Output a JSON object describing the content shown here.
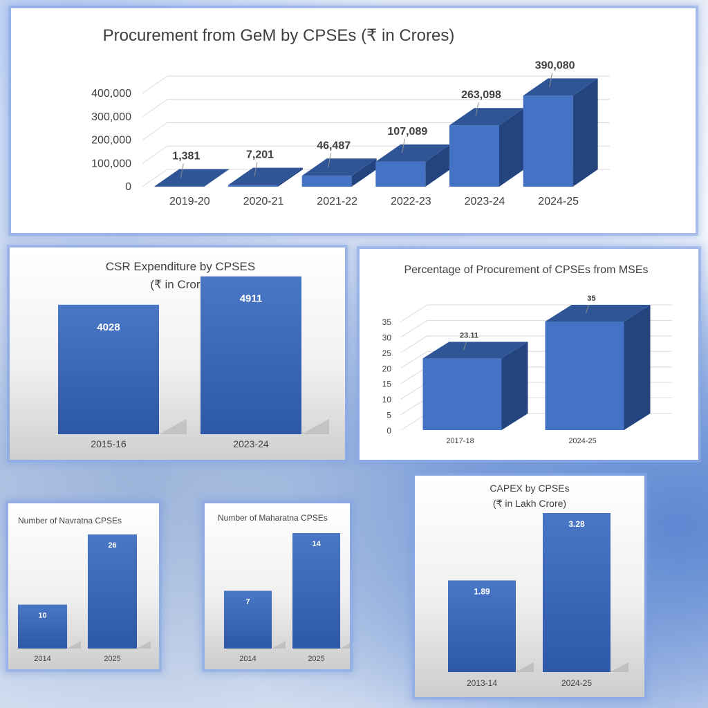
{
  "colors": {
    "bar_front": "#4472c4",
    "bar_top": "#2f5597",
    "bar_side": "#24447f",
    "label_text": "#404040",
    "grid": "#d9d9d9"
  },
  "chart_data": [
    {
      "id": "gem",
      "type": "bar",
      "style": "3d",
      "title": "Procurement from GeM by CPSEs (₹ in Crores)",
      "categories": [
        "2019-20",
        "2020-21",
        "2021-22",
        "2022-23",
        "2023-24",
        "2024-25"
      ],
      "values": [
        1381,
        7201,
        46487,
        107089,
        263098,
        390080
      ],
      "data_labels": [
        "1,381",
        "7,201",
        "46,487",
        "107,089",
        "263,098",
        "390,080"
      ],
      "yticks": [
        0,
        100000,
        200000,
        300000,
        400000
      ],
      "ytick_labels": [
        "0",
        "100,000",
        "200,000",
        "300,000",
        "400,000"
      ],
      "ylim": [
        0,
        400000
      ],
      "grid": true
    },
    {
      "id": "csr",
      "type": "bar",
      "title_lines": [
        "CSR Expenditure  by CPSES",
        "(₹ in Crore)"
      ],
      "categories": [
        "2015-16",
        "2023-24"
      ],
      "values": [
        4028,
        4911
      ],
      "data_labels": [
        "4028",
        "4911"
      ],
      "ylim": [
        0,
        5400
      ],
      "grid": false
    },
    {
      "id": "mse",
      "type": "bar",
      "style": "3d",
      "title": "Percentage of Procurement of CPSEs from MSEs",
      "categories": [
        "2017-18",
        "2024-25"
      ],
      "values": [
        23.11,
        35
      ],
      "data_labels": [
        "23.11",
        "35"
      ],
      "yticks": [
        0,
        5,
        10,
        15,
        20,
        25,
        30,
        35
      ],
      "ytick_labels": [
        "0",
        "5",
        "10",
        "15",
        "20",
        "25",
        "30",
        "35"
      ],
      "ylim": [
        0,
        35
      ],
      "grid": true
    },
    {
      "id": "navratna",
      "type": "bar",
      "title": "Number of Navratna CPSEs",
      "categories": [
        "2014",
        "2025"
      ],
      "values": [
        10,
        26
      ],
      "data_labels": [
        "10",
        "26"
      ],
      "ylim": [
        0,
        26
      ],
      "grid": false
    },
    {
      "id": "maharatna",
      "type": "bar",
      "title": "Number of Maharatna CPSEs",
      "categories": [
        "2014",
        "2025"
      ],
      "values": [
        7,
        14
      ],
      "data_labels": [
        "7",
        "14"
      ],
      "ylim": [
        0,
        14
      ],
      "grid": false
    },
    {
      "id": "capex",
      "type": "bar",
      "title_lines": [
        "CAPEX by CPSEs",
        "(₹ in Lakh Crore)"
      ],
      "categories": [
        "2013-14",
        "2024-25"
      ],
      "values": [
        1.89,
        3.28
      ],
      "data_labels": [
        "1.89",
        "3.28"
      ],
      "ylim": [
        0,
        3.28
      ],
      "grid": false
    }
  ]
}
